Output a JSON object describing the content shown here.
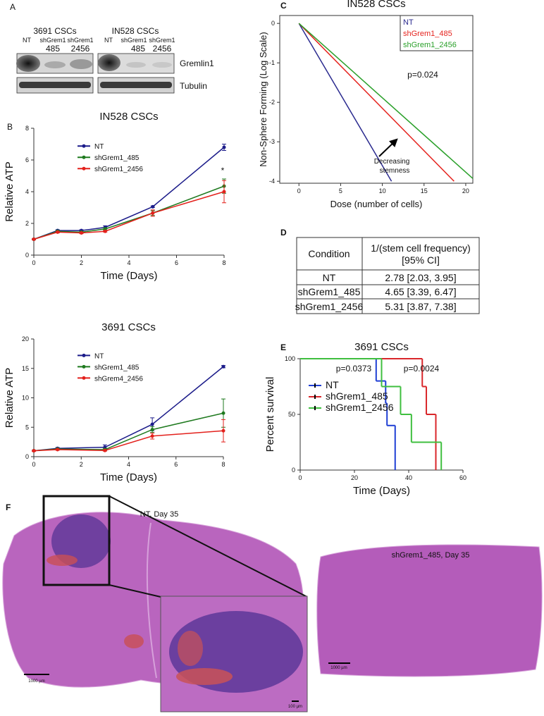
{
  "panel_labels": [
    "A",
    "B",
    "C",
    "D",
    "E",
    "F"
  ],
  "blot": {
    "groups": [
      {
        "title": "3691 CSCs",
        "lanes": [
          "NT",
          "shGrem1",
          "shGrem1"
        ],
        "lane_numbers": [
          "485",
          "2456"
        ]
      },
      {
        "title": "IN528 CSCs",
        "lanes": [
          "NT",
          "shGrem1",
          "shGrem1"
        ],
        "lane_numbers": [
          "485",
          "2456"
        ]
      }
    ],
    "bands": [
      "Gremlin1",
      "Tubulin"
    ]
  },
  "chart_data": [
    {
      "type": "line",
      "title": "IN528 CSCs",
      "x_label": "Time (Days)",
      "y_label": "Relative ATP",
      "x": [
        0,
        1,
        2,
        3,
        5,
        8
      ],
      "xlim": [
        0,
        8
      ],
      "xticks": [
        0,
        2,
        4,
        6,
        8
      ],
      "ylim": [
        0,
        8
      ],
      "yticks": [
        0,
        2,
        4,
        6,
        8
      ],
      "legend": "upper left",
      "markers": true,
      "series": [
        {
          "name": "NT",
          "color": "#1c1c8a",
          "values": [
            1,
            1.55,
            1.55,
            1.75,
            3.05,
            6.8
          ],
          "errors": [
            0.03,
            0.05,
            0.05,
            0.1,
            0.05,
            0.2
          ]
        },
        {
          "name": "shGrem1_485",
          "color": "#1f7a1f",
          "values": [
            1,
            1.5,
            1.45,
            1.65,
            2.65,
            4.35
          ],
          "errors": [
            0.03,
            0.05,
            0.05,
            0.08,
            0.15,
            0.45
          ]
        },
        {
          "name": "shGrem1_2456",
          "color": "#e3211c",
          "values": [
            1,
            1.45,
            1.4,
            1.5,
            2.65,
            4.0
          ],
          "errors": [
            0.03,
            0.05,
            0.05,
            0.05,
            0.2,
            0.7
          ]
        }
      ],
      "annotations": [
        "*"
      ]
    },
    {
      "type": "line",
      "title": "3691 CSCs",
      "x_label": "Time (Days)",
      "y_label": "Relative ATP",
      "x": [
        0,
        1,
        3,
        5,
        8
      ],
      "xlim": [
        0,
        8
      ],
      "xticks": [
        0,
        2,
        4,
        6,
        8
      ],
      "ylim": [
        0,
        20
      ],
      "yticks": [
        0,
        5,
        10,
        15,
        20
      ],
      "legend": "upper left",
      "markers": true,
      "series": [
        {
          "name": "NT",
          "color": "#1c1c8a",
          "values": [
            1,
            1.4,
            1.6,
            5.5,
            15.3
          ],
          "errors": [
            0.1,
            0.15,
            0.4,
            1.1,
            0.2
          ]
        },
        {
          "name": "shGrem1_485",
          "color": "#1f7a1f",
          "values": [
            1,
            1.3,
            1.2,
            4.6,
            7.4
          ],
          "errors": [
            0.1,
            0.1,
            0.2,
            0.5,
            2.4
          ]
        },
        {
          "name": "shGrem4_2456",
          "color": "#e3211c",
          "values": [
            1,
            1.2,
            1.05,
            3.5,
            4.4
          ],
          "errors": [
            0.1,
            0.1,
            0.1,
            0.5,
            1.9
          ]
        }
      ],
      "annotations": []
    },
    {
      "type": "line",
      "title": "IN528 CSCs",
      "x_label": "Dose (number of cells)",
      "y_label": "Non-Sphere Forming (Log Scale)",
      "xlim": [
        -2.3,
        20.85
      ],
      "xticks": [
        0,
        5,
        10,
        15,
        20
      ],
      "ylim": [
        -4.05,
        0.2
      ],
      "yticks": [
        0,
        -1,
        -2,
        -3,
        -4
      ],
      "legend": "upper right",
      "frame": true,
      "series": [
        {
          "name": "NT",
          "color": "#2b2b8f",
          "x": [
            0,
            11.1
          ],
          "values": [
            0,
            -4
          ]
        },
        {
          "name": "shGrem1_485",
          "color": "#e5241f",
          "x": [
            0,
            18.6
          ],
          "values": [
            0,
            -4
          ]
        },
        {
          "name": "shGrem1_2456",
          "color": "#2aa02a",
          "x": [
            0,
            20.85
          ],
          "values": [
            0,
            -3.93
          ]
        }
      ],
      "annotations": [
        "p=0.024",
        "Decreasing",
        "stemness"
      ]
    },
    {
      "type": "line",
      "step": true,
      "title": "3691 CSCs",
      "x_label": "Time (Days)",
      "y_label": "Percent survival",
      "xlim": [
        0,
        60
      ],
      "xticks": [
        0,
        20,
        40,
        60
      ],
      "ylim": [
        0,
        100
      ],
      "yticks": [
        0,
        50,
        100
      ],
      "legend": "lower left",
      "series": [
        {
          "name": "NT",
          "color": "#1f3fd4",
          "x": [
            0,
            28,
            31.5,
            32,
            35
          ],
          "values": [
            100,
            80,
            60,
            40,
            0
          ]
        },
        {
          "name": "shGrem1_485",
          "color": "#d9262a",
          "x": [
            0,
            45,
            46.5,
            50
          ],
          "values": [
            100,
            75,
            50,
            0
          ]
        },
        {
          "name": "shGrem1_2456",
          "color": "#3fbf3f",
          "x": [
            0,
            30,
            37,
            41,
            52
          ],
          "values": [
            100,
            75,
            50,
            25,
            0
          ]
        }
      ],
      "annotations": [
        "p=0.0373",
        "p=0.0024"
      ]
    }
  ],
  "table": {
    "header": [
      [
        "Condition"
      ],
      [
        "1/(stem cell frequency)",
        "[95% CI]"
      ]
    ],
    "rows": [
      [
        "NT",
        "2.78 [2.03, 3.95]"
      ],
      [
        "shGrem1_485",
        "4.65 [3.39, 6.47]"
      ],
      [
        "shGrem1_2456",
        "5.31 [3.87, 7.38]"
      ]
    ]
  },
  "histology": {
    "left_title": "NT, Day 35",
    "right_title": "shGrem1_485, Day 35",
    "scale_bars": [
      "1000 µm",
      "100 µm",
      "1000 µm"
    ]
  }
}
